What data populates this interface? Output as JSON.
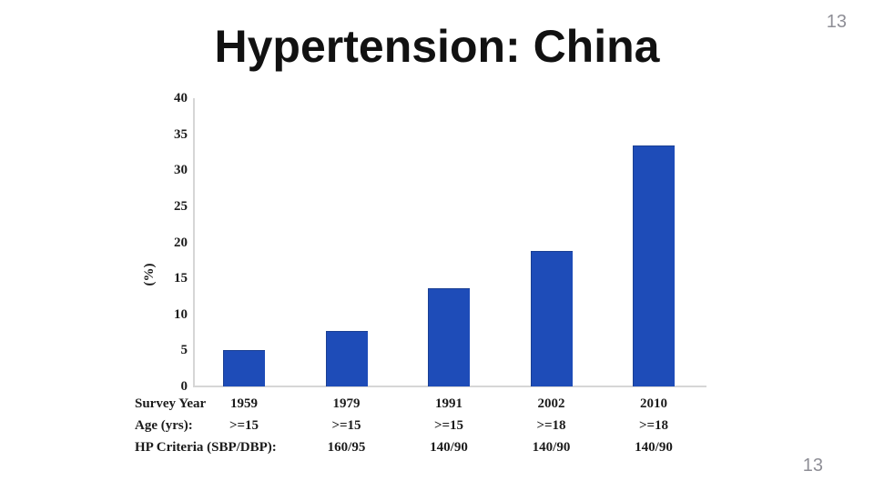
{
  "title": "Hypertension: China",
  "page": {
    "number_top": "13",
    "number_bottom": "13"
  },
  "colors": {
    "bar_blue": "#1e4cb8",
    "axis_gray": "#d6d6d6",
    "text_black": "#1c1c1c",
    "page_number_gray": "#8e8e96"
  },
  "chart_data": {
    "type": "bar",
    "title": "",
    "xlabel": "",
    "ylabel": "(%)",
    "ylim": [
      0,
      40
    ],
    "yticks": [
      0,
      5,
      10,
      15,
      20,
      25,
      30,
      35,
      40
    ],
    "grid": false,
    "legend": "none",
    "bar_color": "#1e4cb8",
    "categories": [
      "1959",
      "1979",
      "1991",
      "2002",
      "2010"
    ],
    "values": [
      5.1,
      7.7,
      13.6,
      18.8,
      33.5
    ],
    "table_rows": [
      {
        "label": "Survey Year",
        "values": [
          "1959",
          "1979",
          "1991",
          "2002",
          "2010"
        ]
      },
      {
        "label": "Age (yrs):",
        "values": [
          ">=15",
          ">=15",
          ">=15",
          ">=18",
          ">=18"
        ]
      },
      {
        "label": "HP Criteria (SBP/DBP):",
        "values": [
          "",
          "160/95",
          "140/90",
          "140/90",
          "140/90"
        ]
      }
    ]
  }
}
